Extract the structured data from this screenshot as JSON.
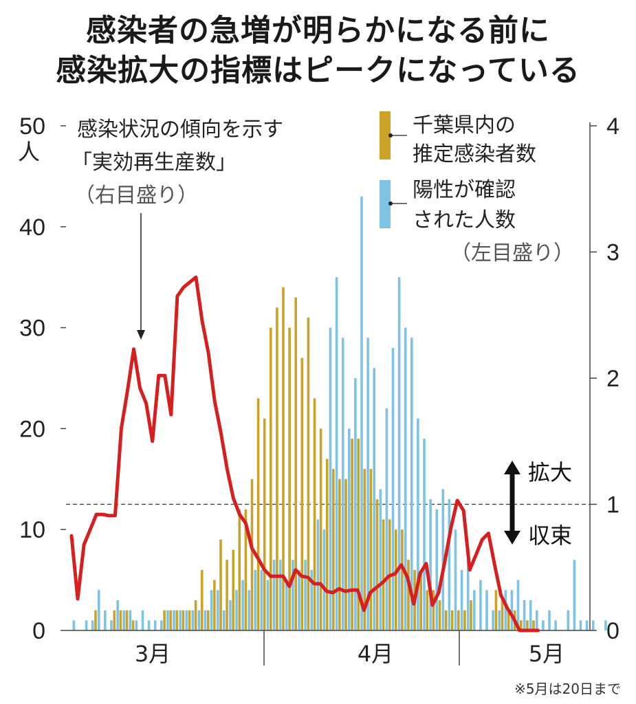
{
  "title_lines": [
    "感染者の急増が明らかになる前に",
    "感染拡大の指標はピークになっている"
  ],
  "note": "※5月は20日まで",
  "colors": {
    "estimated": "#c9a227",
    "confirmed": "#7ec3e6",
    "rt": "#d62020",
    "axis": "#444444"
  },
  "chart_data": {
    "type": "bar",
    "title": "感染者の急増が明らかになる前に感染拡大の指標はピークになっている",
    "left_axis": {
      "unit": "人",
      "ylim": [
        0,
        50
      ],
      "ticks": [
        "0",
        "10",
        "20",
        "30",
        "40",
        "50"
      ]
    },
    "right_axis": {
      "ylim": [
        0,
        4
      ],
      "ticks": [
        "0",
        "1",
        "2",
        "3",
        "4"
      ]
    },
    "x_labels": [
      "3月",
      "4月",
      "5月"
    ],
    "threshold": {
      "value": 1,
      "axis": "right",
      "up_label": "拡大",
      "down_label": "収束"
    },
    "annotation": {
      "lines": [
        "感染状況の傾向を示す",
        "「実効再生産数」",
        "（右目盛り）"
      ]
    },
    "legend": [
      {
        "name_lines": [
          "千葉県内の",
          "推定感染者数"
        ],
        "color": "#c9a227"
      },
      {
        "name_lines": [
          "陽性が確認",
          "された人数"
        ],
        "color": "#7ec3e6"
      }
    ],
    "legend_note": "（左目盛り）",
    "series": [
      {
        "name": "千葉県内の推定感染者数",
        "axis": "left",
        "kind": "bar",
        "values": [
          0,
          0,
          0,
          0,
          2,
          0,
          0,
          2,
          2,
          2,
          1,
          0,
          0,
          0,
          0,
          2,
          2,
          2,
          2,
          2,
          3,
          6,
          2,
          5,
          9,
          7,
          8,
          12,
          12,
          15,
          23,
          21,
          30,
          32,
          34,
          30,
          33,
          27,
          31,
          23,
          20,
          17,
          16,
          15,
          15,
          19,
          19,
          16,
          16,
          13,
          11,
          11,
          10,
          10,
          7,
          6,
          6,
          4,
          4,
          3,
          2,
          2,
          2,
          2,
          3,
          0,
          0,
          0,
          4,
          3,
          2,
          2,
          1,
          1,
          1,
          0,
          0,
          0,
          0,
          0,
          0,
          0
        ]
      },
      {
        "name": "陽性が確認された人数",
        "axis": "left",
        "kind": "bar",
        "values": [
          1,
          0,
          1,
          1,
          4,
          2,
          1,
          3,
          2,
          2,
          1,
          2,
          1,
          1,
          1,
          2,
          2,
          2,
          2,
          2,
          2,
          2,
          4,
          4,
          2,
          3,
          4,
          5,
          4,
          6,
          6,
          5,
          7,
          7,
          5,
          7,
          6,
          7,
          6,
          11,
          10,
          30,
          35,
          29,
          20,
          25,
          43,
          29,
          26,
          14,
          22,
          28,
          35,
          30,
          29,
          21,
          19,
          13,
          12,
          14,
          13,
          10,
          6,
          8,
          4,
          5,
          4,
          2,
          2,
          4,
          4,
          5,
          3,
          3,
          2,
          1,
          2,
          1,
          0,
          2,
          7,
          1,
          1,
          1,
          0,
          1
        ]
      },
      {
        "name": "実効再生産数",
        "axis": "right",
        "kind": "line",
        "values": [
          0.75,
          0.25,
          0.68,
          0.8,
          0.92,
          0.92,
          0.91,
          0.91,
          1.6,
          1.9,
          2.23,
          1.92,
          1.8,
          1.5,
          2.02,
          2.02,
          1.71,
          2.65,
          2.72,
          2.76,
          2.8,
          2.45,
          2.2,
          1.82,
          1.57,
          1.28,
          1.05,
          0.92,
          0.85,
          0.65,
          0.57,
          0.48,
          0.43,
          0.43,
          0.43,
          0.35,
          0.48,
          0.43,
          0.42,
          0.37,
          0.37,
          0.31,
          0.3,
          0.33,
          0.31,
          0.32,
          0.32,
          0.16,
          0.3,
          0.34,
          0.38,
          0.43,
          0.45,
          0.52,
          0.42,
          0.21,
          0.45,
          0.53,
          0.2,
          0.3,
          0.55,
          0.82,
          1.03,
          0.95,
          0.48,
          0.6,
          0.72,
          0.77,
          0.52,
          0.28,
          0.18,
          0.1,
          0.0,
          0.0,
          0.0,
          0.0
        ]
      }
    ]
  }
}
